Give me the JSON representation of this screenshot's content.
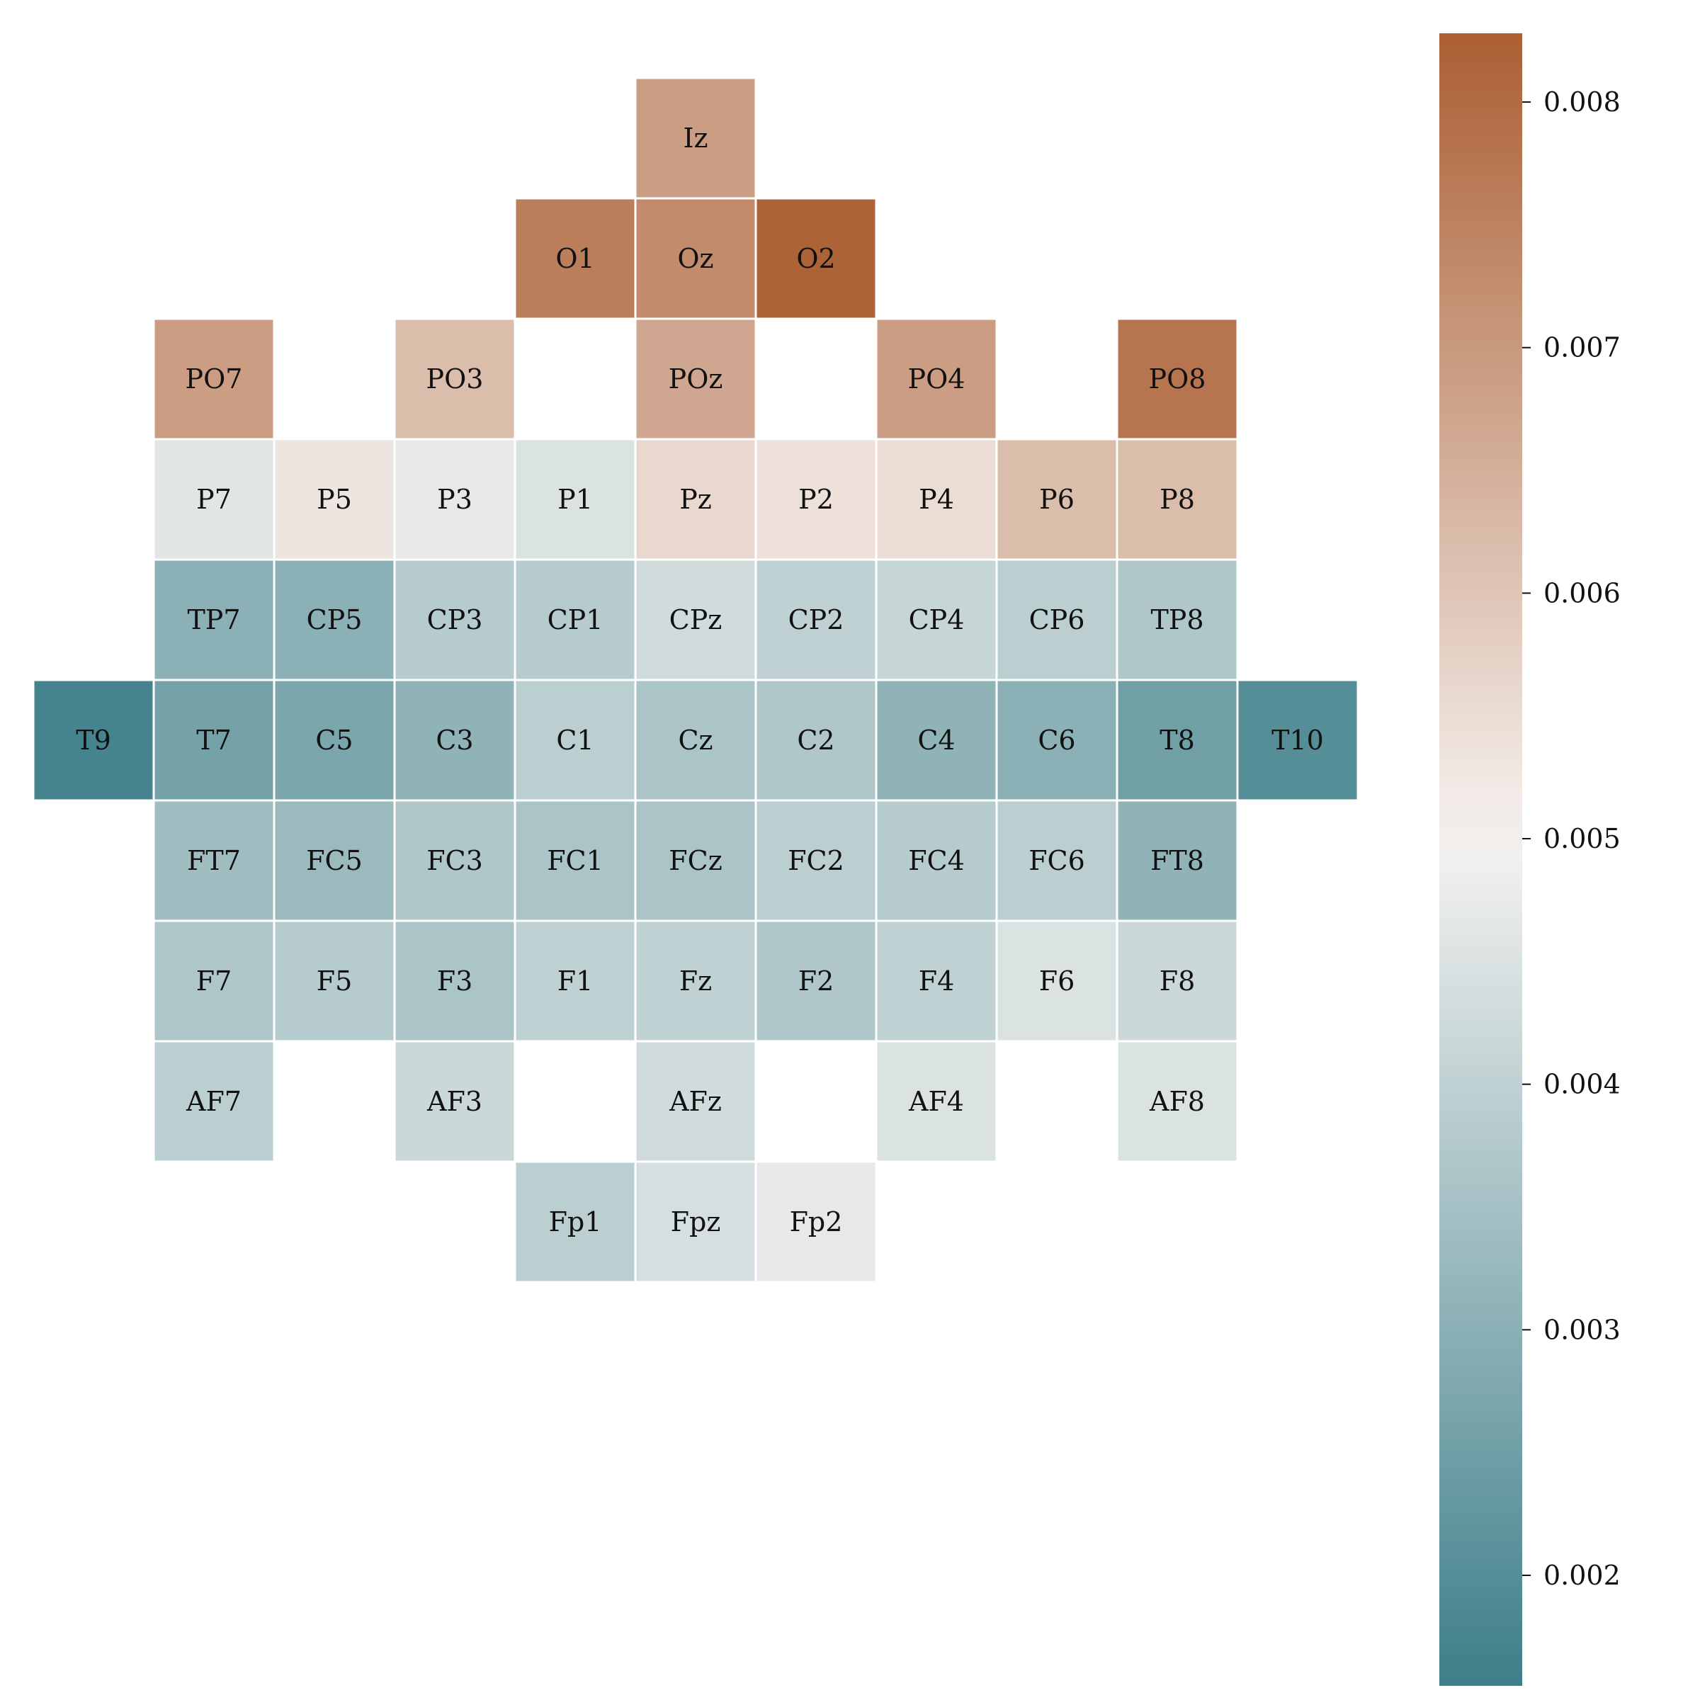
{
  "chart_data": {
    "type": "heatmap",
    "title": "",
    "xlabel": "",
    "ylabel": "",
    "grid": false,
    "colormap": {
      "low": "#3d7f8a",
      "mid": "#f6f3f1",
      "high": "#ab5f33",
      "vmin": 0.00155,
      "vcenter": 0.005,
      "vmax": 0.00828
    },
    "colorbar": {
      "ticks": [
        0.002,
        0.003,
        0.004,
        0.005,
        0.006,
        0.007,
        0.008
      ],
      "tick_labels": [
        "0.002",
        "0.003",
        "0.004",
        "0.005",
        "0.006",
        "0.007",
        "0.008"
      ],
      "placement": "right"
    },
    "rows": [
      [
        {
          "col": 5,
          "label": "Iz",
          "value": 0.0069
        }
      ],
      [
        {
          "col": 4,
          "label": "O1",
          "value": 0.0076
        },
        {
          "col": 5,
          "label": "Oz",
          "value": 0.0073
        },
        {
          "col": 6,
          "label": "O2",
          "value": 0.0082
        }
      ],
      [
        {
          "col": 1,
          "label": "PO7",
          "value": 0.0069
        },
        {
          "col": 3,
          "label": "PO3",
          "value": 0.0062
        },
        {
          "col": 5,
          "label": "POz",
          "value": 0.0067
        },
        {
          "col": 7,
          "label": "PO4",
          "value": 0.0069
        },
        {
          "col": 9,
          "label": "PO8",
          "value": 0.0078
        }
      ],
      [
        {
          "col": 1,
          "label": "P7",
          "value": 0.0046
        },
        {
          "col": 2,
          "label": "P5",
          "value": 0.0053
        },
        {
          "col": 3,
          "label": "P3",
          "value": 0.0047
        },
        {
          "col": 4,
          "label": "P1",
          "value": 0.0045
        },
        {
          "col": 5,
          "label": "Pz",
          "value": 0.0056
        },
        {
          "col": 6,
          "label": "P2",
          "value": 0.0054
        },
        {
          "col": 7,
          "label": "P4",
          "value": 0.0055
        },
        {
          "col": 8,
          "label": "P6",
          "value": 0.0062
        },
        {
          "col": 9,
          "label": "P8",
          "value": 0.0062
        }
      ],
      [
        {
          "col": 1,
          "label": "TP7",
          "value": 0.003
        },
        {
          "col": 2,
          "label": "CP5",
          "value": 0.003
        },
        {
          "col": 3,
          "label": "CP3",
          "value": 0.0038
        },
        {
          "col": 4,
          "label": "CP1",
          "value": 0.0038
        },
        {
          "col": 5,
          "label": "CPz",
          "value": 0.0043
        },
        {
          "col": 6,
          "label": "CP2",
          "value": 0.004
        },
        {
          "col": 7,
          "label": "CP4",
          "value": 0.0041
        },
        {
          "col": 8,
          "label": "CP6",
          "value": 0.0039
        },
        {
          "col": 9,
          "label": "TP8",
          "value": 0.0037
        }
      ],
      [
        {
          "col": 0,
          "label": "T9",
          "value": 0.0017
        },
        {
          "col": 1,
          "label": "T7",
          "value": 0.0026
        },
        {
          "col": 2,
          "label": "C5",
          "value": 0.0027
        },
        {
          "col": 3,
          "label": "C3",
          "value": 0.0031
        },
        {
          "col": 4,
          "label": "C1",
          "value": 0.0039
        },
        {
          "col": 5,
          "label": "Cz",
          "value": 0.0036
        },
        {
          "col": 6,
          "label": "C2",
          "value": 0.0037
        },
        {
          "col": 7,
          "label": "C4",
          "value": 0.0031
        },
        {
          "col": 8,
          "label": "C6",
          "value": 0.003
        },
        {
          "col": 9,
          "label": "T8",
          "value": 0.0025
        },
        {
          "col": 10,
          "label": "T10",
          "value": 0.002
        }
      ],
      [
        {
          "col": 1,
          "label": "FT7",
          "value": 0.0034
        },
        {
          "col": 2,
          "label": "FC5",
          "value": 0.0033
        },
        {
          "col": 3,
          "label": "FC3",
          "value": 0.0037
        },
        {
          "col": 4,
          "label": "FC1",
          "value": 0.0036
        },
        {
          "col": 5,
          "label": "FCz",
          "value": 0.0036
        },
        {
          "col": 6,
          "label": "FC2",
          "value": 0.0039
        },
        {
          "col": 7,
          "label": "FC4",
          "value": 0.0038
        },
        {
          "col": 8,
          "label": "FC6",
          "value": 0.0039
        },
        {
          "col": 9,
          "label": "FT8",
          "value": 0.0031
        }
      ],
      [
        {
          "col": 1,
          "label": "F7",
          "value": 0.0037
        },
        {
          "col": 2,
          "label": "F5",
          "value": 0.0038
        },
        {
          "col": 3,
          "label": "F3",
          "value": 0.0036
        },
        {
          "col": 4,
          "label": "F1",
          "value": 0.004
        },
        {
          "col": 5,
          "label": "Fz",
          "value": 0.004
        },
        {
          "col": 6,
          "label": "F2",
          "value": 0.0037
        },
        {
          "col": 7,
          "label": "F4",
          "value": 0.004
        },
        {
          "col": 8,
          "label": "F6",
          "value": 0.0045
        },
        {
          "col": 9,
          "label": "F8",
          "value": 0.0042
        }
      ],
      [
        {
          "col": 1,
          "label": "AF7",
          "value": 0.0039
        },
        {
          "col": 3,
          "label": "AF3",
          "value": 0.0042
        },
        {
          "col": 5,
          "label": "AFz",
          "value": 0.0043
        },
        {
          "col": 7,
          "label": "AF4",
          "value": 0.0045
        },
        {
          "col": 9,
          "label": "AF8",
          "value": 0.0045
        }
      ],
      [
        {
          "col": 4,
          "label": "Fp1",
          "value": 0.0039
        },
        {
          "col": 5,
          "label": "Fpz",
          "value": 0.0044
        },
        {
          "col": 6,
          "label": "Fp2",
          "value": 0.0047
        }
      ]
    ]
  }
}
